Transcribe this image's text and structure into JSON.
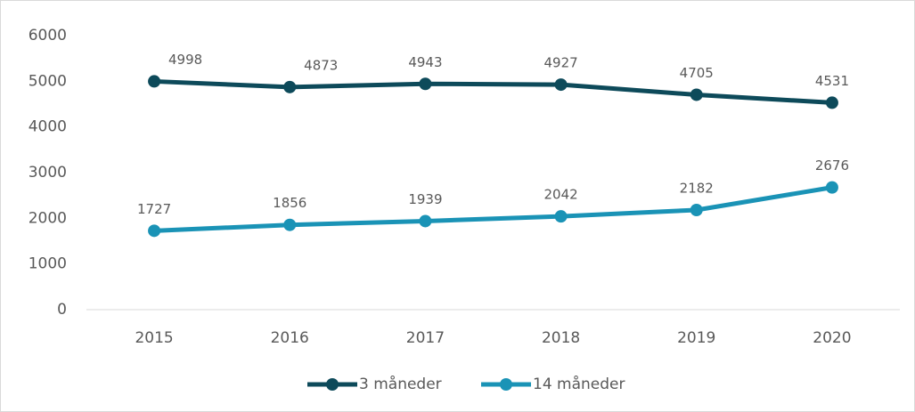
{
  "chart_data": {
    "type": "line",
    "categories": [
      "2015",
      "2016",
      "2017",
      "2018",
      "2019",
      "2020"
    ],
    "series": [
      {
        "name": "3 måneder",
        "color": "#0d4a5a",
        "values": [
          4998,
          4873,
          4943,
          4927,
          4705,
          4531
        ]
      },
      {
        "name": "14 måneder",
        "color": "#1a93b6",
        "values": [
          1727,
          1856,
          1939,
          2042,
          2182,
          2676
        ]
      }
    ],
    "ylim": [
      0,
      6000
    ],
    "yticks": [
      0,
      1000,
      2000,
      3000,
      4000,
      5000,
      6000
    ],
    "legend": "bottom"
  }
}
